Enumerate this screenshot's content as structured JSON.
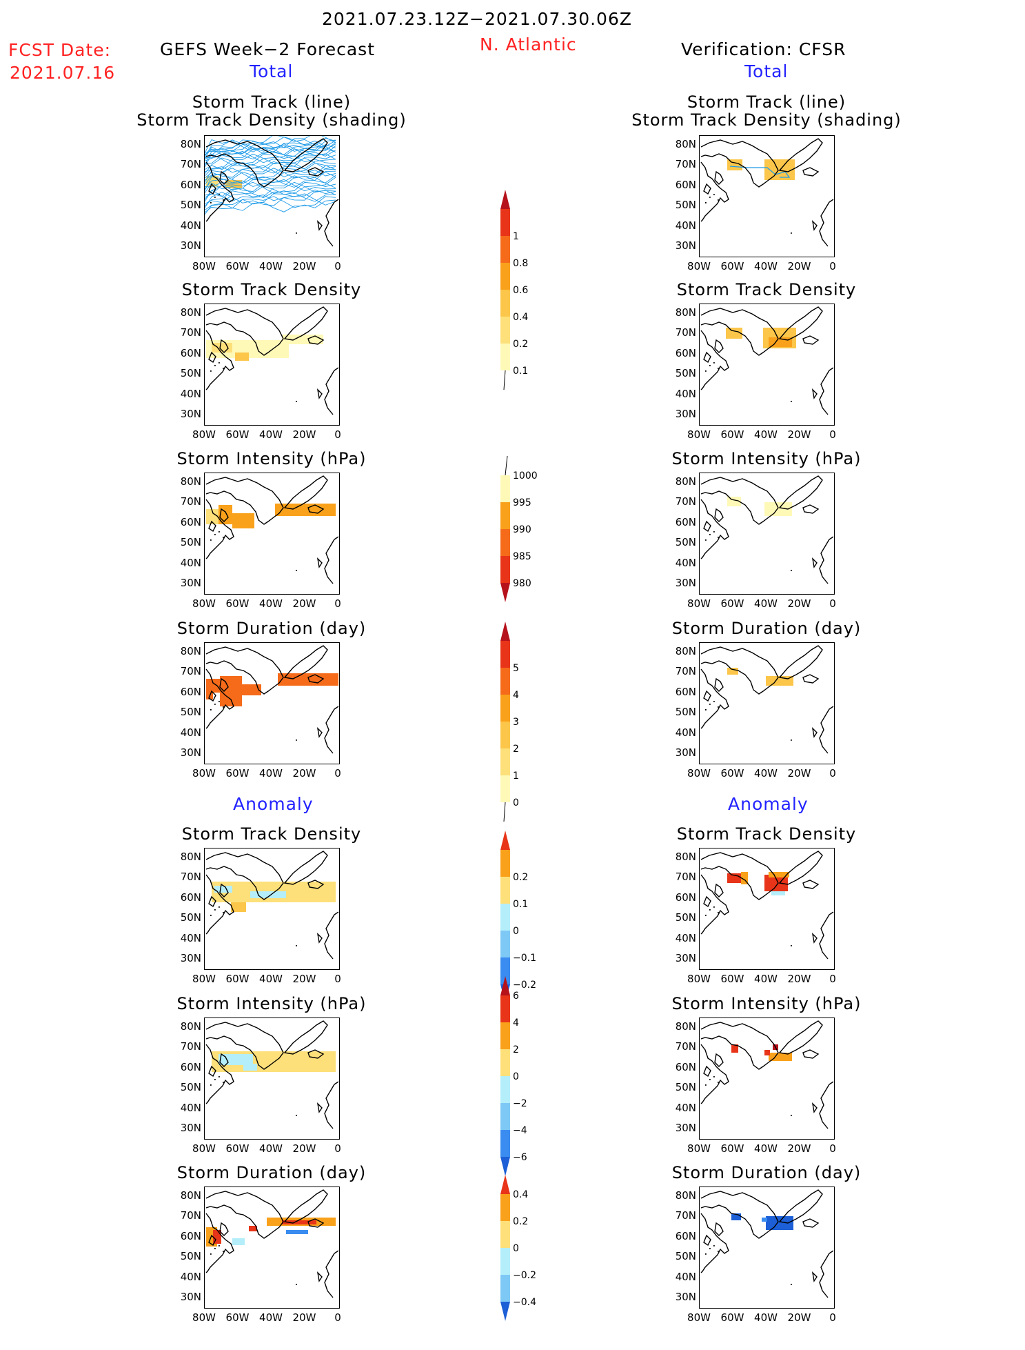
{
  "header": {
    "date_range": "2021.07.23.12Z−2021.07.30.06Z",
    "fcst_label": "FCST Date:",
    "fcst_date": "2021.07.16",
    "region": "N. Atlantic",
    "left_title": "GEFS Week−2 Forecast",
    "right_title": "Verification: CFSR",
    "left_section": "Total",
    "right_section": "Total",
    "left_anom": "Anomaly",
    "right_anom": "Anomaly"
  },
  "panels": {
    "track_line": "Storm Track (line)",
    "track_shading": "Storm Track Density (shading)",
    "density": "Storm Track Density",
    "intensity": "Storm Intensity (hPa)",
    "duration": "Storm Duration (day)"
  },
  "axes": {
    "lat": [
      "80N",
      "70N",
      "60N",
      "50N",
      "40N",
      "30N"
    ],
    "lon": [
      "80W",
      "60W",
      "40W",
      "20W",
      "0"
    ]
  },
  "colorbars": {
    "density": [
      "1",
      "0.8",
      "0.6",
      "0.4",
      "0.2",
      "0.1"
    ],
    "intensity": [
      "1000",
      "995",
      "990",
      "985",
      "980"
    ],
    "duration": [
      "5",
      "4",
      "3",
      "2",
      "1",
      "0"
    ],
    "anom_density": [
      "0.2",
      "0.1",
      "0",
      "−0.1",
      "−0.2"
    ],
    "anom_intensity": [
      "6",
      "4",
      "2",
      "0",
      "−2",
      "−4",
      "−6"
    ],
    "anom_duration": [
      "0.4",
      "0.2",
      "0",
      "−0.2",
      "−0.4"
    ]
  },
  "colors": {
    "pale": "#fff9b8",
    "light": "#fde07a",
    "yellow": "#fbc64a",
    "orange": "#f9a11b",
    "dorange": "#f56b1a",
    "red": "#e83418",
    "dred": "#b5121b",
    "lblue": "#b4eefa",
    "mblue": "#7ec8f6",
    "blue": "#3a8cf0",
    "dblue": "#1c5fd6",
    "track": "#1e9be8"
  }
}
